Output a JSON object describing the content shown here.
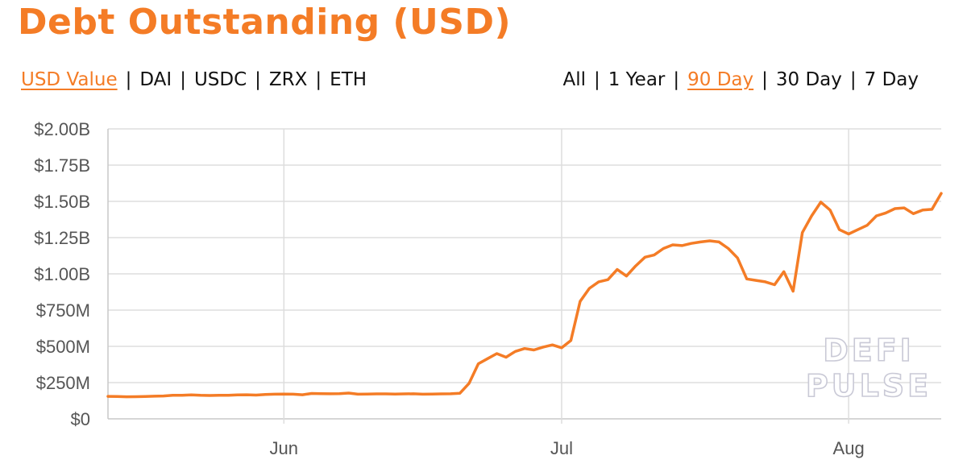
{
  "header": {
    "title": "Debt Outstanding (USD)"
  },
  "currency_options": [
    {
      "label": "USD Value",
      "active": true
    },
    {
      "label": "DAI",
      "active": false
    },
    {
      "label": "USDC",
      "active": false
    },
    {
      "label": "ZRX",
      "active": false
    },
    {
      "label": "ETH",
      "active": false
    }
  ],
  "range_options": [
    {
      "label": "All",
      "active": false
    },
    {
      "label": "1 Year",
      "active": false
    },
    {
      "label": "90 Day",
      "active": true
    },
    {
      "label": "30 Day",
      "active": false
    },
    {
      "label": "7 Day",
      "active": false
    }
  ],
  "separator": "|",
  "watermark": {
    "line1": "DEFI",
    "line2": "PULSE"
  },
  "colors": {
    "accent": "#f47c26",
    "grid": "#dddddd",
    "text": "#111111",
    "tick": "#555555"
  },
  "chart_data": {
    "type": "line",
    "title": "Debt Outstanding (USD)",
    "xlabel": "",
    "ylabel": "",
    "x_range": [
      "2020-05-13",
      "2020-08-11"
    ],
    "ylim": [
      0,
      2000000000
    ],
    "yticks": [
      {
        "value": 0,
        "label": "$0"
      },
      {
        "value": 250000000,
        "label": "$250M"
      },
      {
        "value": 500000000,
        "label": "$500M"
      },
      {
        "value": 750000000,
        "label": "$750M"
      },
      {
        "value": 1000000000,
        "label": "$1.00B"
      },
      {
        "value": 1250000000,
        "label": "$1.25B"
      },
      {
        "value": 1500000000,
        "label": "$1.50B"
      },
      {
        "value": 1750000000,
        "label": "$1.75B"
      },
      {
        "value": 2000000000,
        "label": "$2.00B"
      }
    ],
    "xticks": [
      {
        "date": "2020-06-01",
        "label": "Jun"
      },
      {
        "date": "2020-07-01",
        "label": "Jul"
      },
      {
        "date": "2020-08-01",
        "label": "Aug"
      }
    ],
    "grid": true,
    "series": [
      {
        "color": "#f47c26",
        "points": [
          [
            "2020-05-13",
            155000000
          ],
          [
            "2020-05-14",
            154000000
          ],
          [
            "2020-05-15",
            152000000
          ],
          [
            "2020-05-16",
            153000000
          ],
          [
            "2020-05-17",
            154000000
          ],
          [
            "2020-05-18",
            156000000
          ],
          [
            "2020-05-19",
            158000000
          ],
          [
            "2020-05-20",
            162000000
          ],
          [
            "2020-05-21",
            163000000
          ],
          [
            "2020-05-22",
            165000000
          ],
          [
            "2020-05-23",
            162000000
          ],
          [
            "2020-05-24",
            161000000
          ],
          [
            "2020-05-25",
            162000000
          ],
          [
            "2020-05-26",
            163000000
          ],
          [
            "2020-05-27",
            165000000
          ],
          [
            "2020-05-28",
            166000000
          ],
          [
            "2020-05-29",
            164000000
          ],
          [
            "2020-05-30",
            168000000
          ],
          [
            "2020-05-31",
            170000000
          ],
          [
            "2020-06-01",
            171000000
          ],
          [
            "2020-06-02",
            170000000
          ],
          [
            "2020-06-03",
            166000000
          ],
          [
            "2020-06-04",
            175000000
          ],
          [
            "2020-06-05",
            174000000
          ],
          [
            "2020-06-06",
            173000000
          ],
          [
            "2020-06-07",
            174000000
          ],
          [
            "2020-06-08",
            178000000
          ],
          [
            "2020-06-09",
            170000000
          ],
          [
            "2020-06-10",
            171000000
          ],
          [
            "2020-06-11",
            172000000
          ],
          [
            "2020-06-12",
            172000000
          ],
          [
            "2020-06-13",
            171000000
          ],
          [
            "2020-06-14",
            172000000
          ],
          [
            "2020-06-15",
            173000000
          ],
          [
            "2020-06-16",
            170000000
          ],
          [
            "2020-06-17",
            171000000
          ],
          [
            "2020-06-18",
            172000000
          ],
          [
            "2020-06-19",
            173000000
          ],
          [
            "2020-06-20",
            176000000
          ],
          [
            "2020-06-21",
            245000000
          ],
          [
            "2020-06-22",
            380000000
          ],
          [
            "2020-06-23",
            415000000
          ],
          [
            "2020-06-24",
            450000000
          ],
          [
            "2020-06-25",
            425000000
          ],
          [
            "2020-06-26",
            465000000
          ],
          [
            "2020-06-27",
            485000000
          ],
          [
            "2020-06-28",
            475000000
          ],
          [
            "2020-06-29",
            495000000
          ],
          [
            "2020-06-30",
            510000000
          ],
          [
            "2020-07-01",
            490000000
          ],
          [
            "2020-07-02",
            540000000
          ],
          [
            "2020-07-03",
            810000000
          ],
          [
            "2020-07-04",
            900000000
          ],
          [
            "2020-07-05",
            945000000
          ],
          [
            "2020-07-06",
            960000000
          ],
          [
            "2020-07-07",
            1030000000
          ],
          [
            "2020-07-08",
            985000000
          ],
          [
            "2020-07-09",
            1055000000
          ],
          [
            "2020-07-10",
            1115000000
          ],
          [
            "2020-07-11",
            1130000000
          ],
          [
            "2020-07-12",
            1175000000
          ],
          [
            "2020-07-13",
            1200000000
          ],
          [
            "2020-07-14",
            1195000000
          ],
          [
            "2020-07-15",
            1210000000
          ],
          [
            "2020-07-16",
            1220000000
          ],
          [
            "2020-07-17",
            1228000000
          ],
          [
            "2020-07-18",
            1220000000
          ],
          [
            "2020-07-19",
            1175000000
          ],
          [
            "2020-07-20",
            1110000000
          ],
          [
            "2020-07-21",
            965000000
          ],
          [
            "2020-07-22",
            955000000
          ],
          [
            "2020-07-23",
            945000000
          ],
          [
            "2020-07-24",
            925000000
          ],
          [
            "2020-07-25",
            1015000000
          ],
          [
            "2020-07-26",
            880000000
          ],
          [
            "2020-07-27",
            1285000000
          ],
          [
            "2020-07-28",
            1400000000
          ],
          [
            "2020-07-29",
            1495000000
          ],
          [
            "2020-07-30",
            1440000000
          ],
          [
            "2020-07-31",
            1305000000
          ],
          [
            "2020-08-01",
            1275000000
          ],
          [
            "2020-08-02",
            1305000000
          ],
          [
            "2020-08-03",
            1335000000
          ],
          [
            "2020-08-04",
            1400000000
          ],
          [
            "2020-08-05",
            1420000000
          ],
          [
            "2020-08-06",
            1450000000
          ],
          [
            "2020-08-07",
            1455000000
          ],
          [
            "2020-08-08",
            1415000000
          ],
          [
            "2020-08-09",
            1440000000
          ],
          [
            "2020-08-10",
            1445000000
          ],
          [
            "2020-08-11",
            1555000000
          ]
        ]
      }
    ]
  }
}
